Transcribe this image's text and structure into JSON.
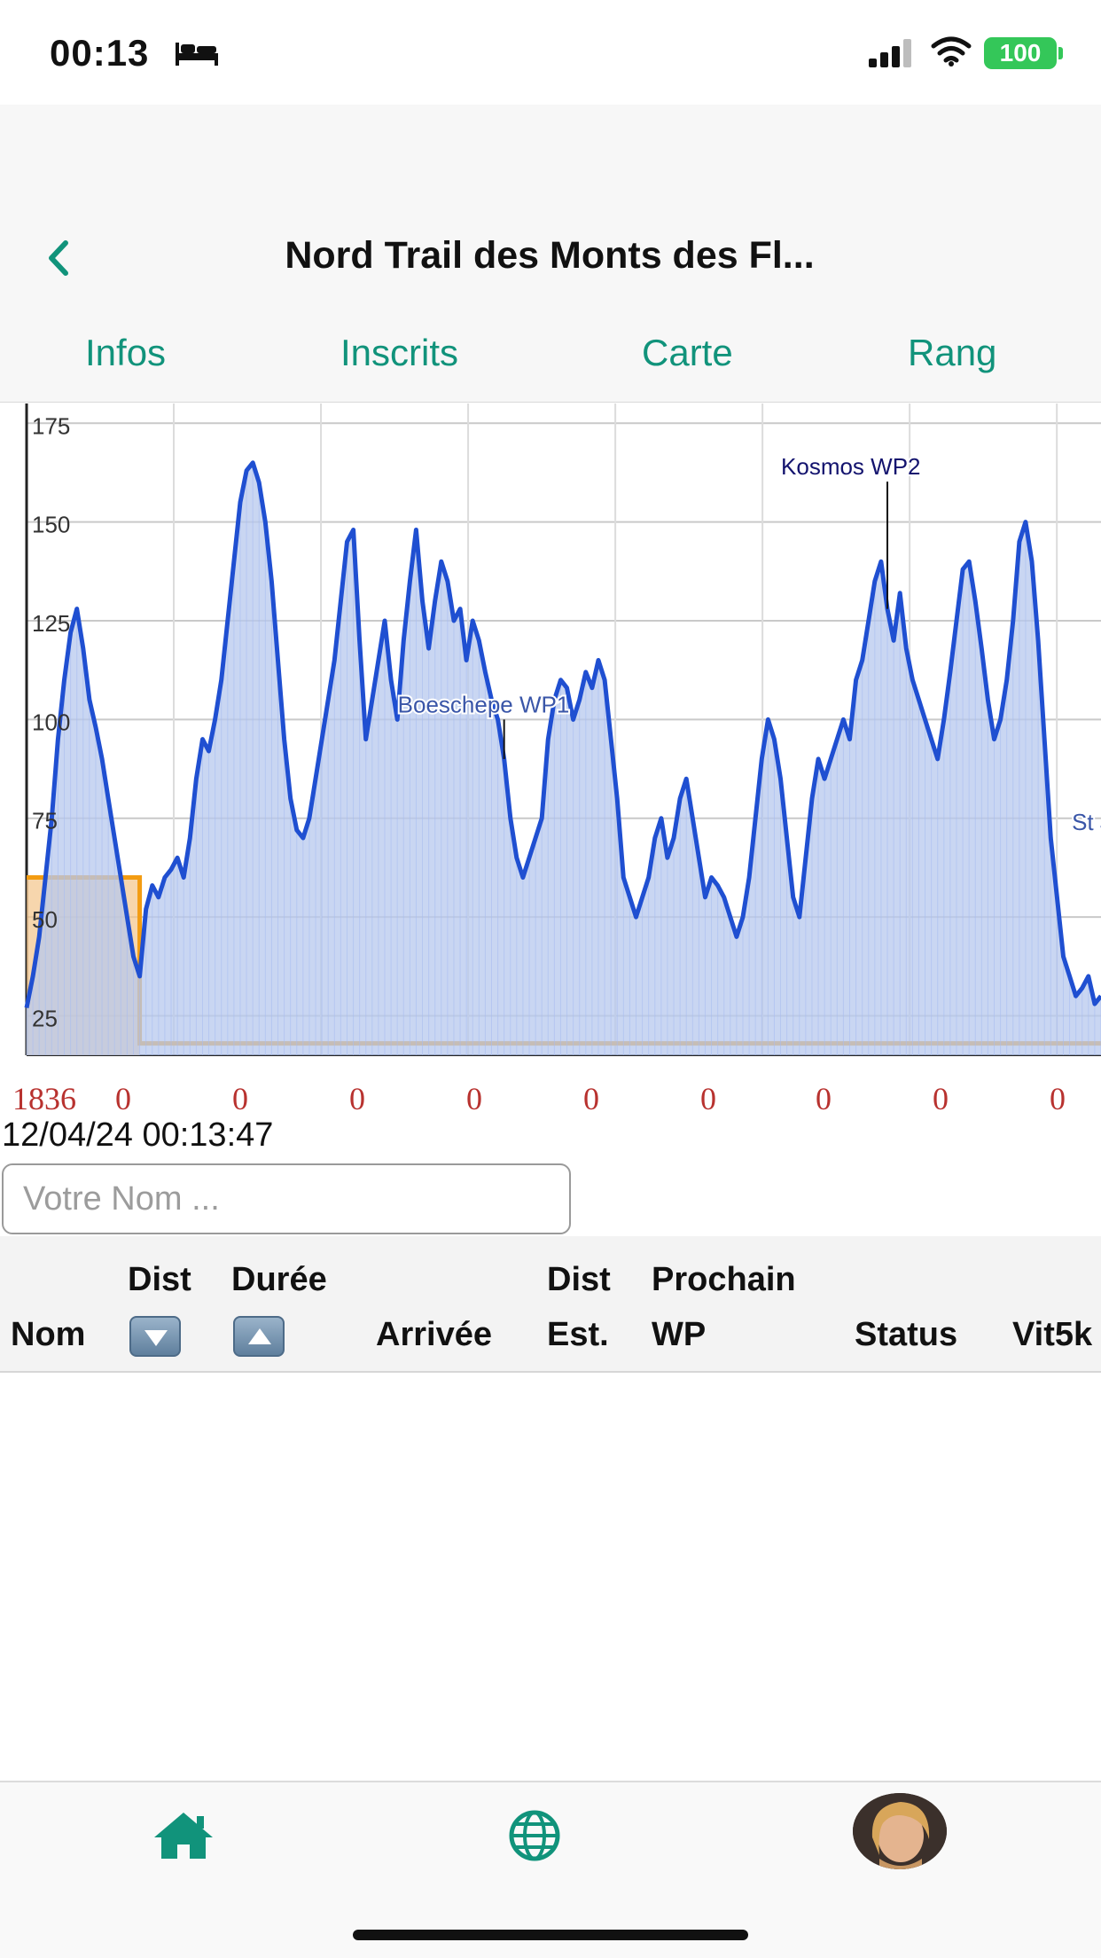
{
  "status_bar": {
    "time": "00:13",
    "battery": "100",
    "icons": [
      "bed-icon",
      "signal-icon",
      "wifi-icon"
    ]
  },
  "header": {
    "title": "Nord Trail des Monts des Fl...",
    "back_icon": "chevron-left-icon",
    "tabs": [
      {
        "label": "Infos"
      },
      {
        "label": "Inscrits"
      },
      {
        "label": "Carte"
      },
      {
        "label": "Rang"
      }
    ]
  },
  "colors": {
    "accent": "#11937b",
    "profile_line": "#1f4fd1",
    "profile_fill": "#b7c8ee",
    "orange": "#f39c12",
    "zero_text": "#b8322f"
  },
  "chart_data": {
    "type": "area",
    "ylim": [
      15,
      180
    ],
    "yticks": [
      "175",
      "150",
      "125",
      "100",
      "75",
      "50",
      "25"
    ],
    "grid": true,
    "series": [
      {
        "values": [
          27,
          35,
          45,
          60,
          75,
          95,
          110,
          122,
          128,
          118,
          105,
          98,
          90,
          80,
          70,
          60,
          50,
          40,
          35,
          52,
          58,
          55,
          60,
          62,
          65,
          60,
          70,
          85,
          95,
          92,
          100,
          110,
          125,
          140,
          155,
          163,
          165,
          160,
          150,
          135,
          115,
          95,
          80,
          72,
          70,
          75,
          85,
          95,
          105,
          115,
          130,
          145,
          148,
          120,
          95,
          105,
          115,
          125,
          110,
          100,
          120,
          135,
          148,
          130,
          118,
          130,
          140,
          135,
          125,
          128,
          115,
          125,
          120,
          112,
          105,
          100,
          90,
          75,
          65,
          60,
          65,
          70,
          75,
          95,
          105,
          110,
          108,
          100,
          105,
          112,
          108,
          115,
          110,
          95,
          80,
          60,
          55,
          50,
          55,
          60,
          70,
          75,
          65,
          70,
          80,
          85,
          75,
          65,
          55,
          60,
          58,
          55,
          50,
          45,
          50,
          60,
          75,
          90,
          100,
          95,
          85,
          70,
          55,
          50,
          65,
          80,
          90,
          85,
          90,
          95,
          100,
          95,
          110,
          115,
          125,
          135,
          140,
          128,
          120,
          132,
          118,
          110,
          105,
          100,
          95,
          90,
          100,
          112,
          125,
          138,
          140,
          130,
          118,
          105,
          95,
          100,
          110,
          125,
          145,
          150,
          140,
          120,
          95,
          70,
          55,
          40,
          35,
          30,
          32,
          35,
          28,
          30
        ]
      }
    ],
    "annotations": [
      {
        "label": "Boeschepe WP1",
        "x": 76
      },
      {
        "label": "Kosmos WP2",
        "x": 137
      },
      {
        "label": "St Jans",
        "x": 172
      }
    ],
    "orange_band": {
      "level_high": 60,
      "level_low": 18,
      "drop_at": 18
    },
    "counts": [
      "1836",
      "0",
      "0",
      "0",
      "0",
      "0",
      "0",
      "0",
      "0",
      "0"
    ]
  },
  "timestamp": "12/04/24 00:13:47",
  "search": {
    "placeholder": "Votre Nom ..."
  },
  "table": {
    "col_nom": "Nom",
    "col_dist_1": "Dist",
    "col_duree": "Durée",
    "col_arrivee": "Arrivée",
    "col_dist_2a": "Dist",
    "col_dist_2b": "Est.",
    "col_prochain_a": "Prochain",
    "col_prochain_b": "WP",
    "col_status": "Status",
    "col_vit": "Vit5k"
  },
  "bottom_nav": {
    "items": [
      "home-icon",
      "globe-icon",
      "avatar"
    ]
  }
}
